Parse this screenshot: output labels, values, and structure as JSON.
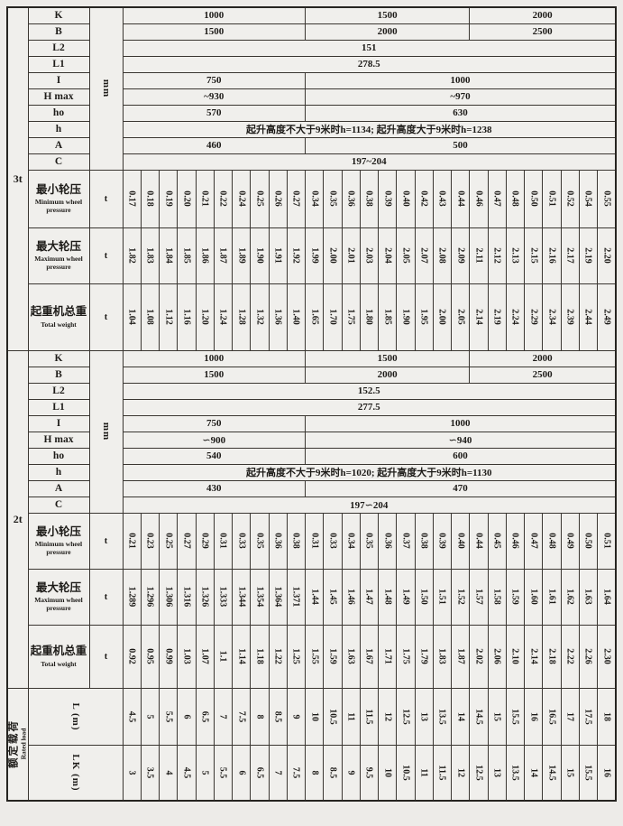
{
  "columns": 27,
  "sections": [
    {
      "capacity": "3t",
      "dim_unit": "mm",
      "dims": [
        {
          "name": "K",
          "cells": [
            {
              "span": 10,
              "text": "1000"
            },
            {
              "span": 9,
              "text": "1500"
            },
            {
              "span": 8,
              "text": "2000"
            }
          ]
        },
        {
          "name": "B",
          "cells": [
            {
              "span": 10,
              "text": "1500"
            },
            {
              "span": 9,
              "text": "2000"
            },
            {
              "span": 8,
              "text": "2500"
            }
          ]
        },
        {
          "name": "L2",
          "cells": [
            {
              "span": 27,
              "text": "151"
            }
          ]
        },
        {
          "name": "L1",
          "cells": [
            {
              "span": 27,
              "text": "278.5"
            }
          ]
        },
        {
          "name": "I",
          "cells": [
            {
              "span": 10,
              "text": "750"
            },
            {
              "span": 17,
              "text": "1000"
            }
          ]
        },
        {
          "name": "H max",
          "cells": [
            {
              "span": 10,
              "text": "~930"
            },
            {
              "span": 17,
              "text": "~970"
            }
          ]
        },
        {
          "name": "ho",
          "cells": [
            {
              "span": 10,
              "text": "570"
            },
            {
              "span": 17,
              "text": "630"
            }
          ]
        },
        {
          "name": "h",
          "cells": [
            {
              "span": 27,
              "text": "起升高度不大于9米时h=1134; 起升高度大于9米时h=1238"
            }
          ]
        },
        {
          "name": "A",
          "cells": [
            {
              "span": 10,
              "text": "460"
            },
            {
              "span": 17,
              "text": "500"
            }
          ]
        },
        {
          "name": "C",
          "cells": [
            {
              "span": 27,
              "text": "197~204"
            }
          ]
        }
      ],
      "rows": [
        {
          "zh": "最小轮压",
          "en": "Minimum wheel pressure",
          "unit": "t",
          "values": [
            "0.17",
            "0.18",
            "0.19",
            "0.20",
            "0.21",
            "0.22",
            "0.24",
            "0.25",
            "0.26",
            "0.27",
            "0.34",
            "0.35",
            "0.36",
            "0.38",
            "0.39",
            "0.40",
            "0.42",
            "0.43",
            "0.44",
            "0.46",
            "0.47",
            "0.48",
            "0.50",
            "0.51",
            "0.52",
            "0.54",
            "0.55"
          ]
        },
        {
          "zh": "最大轮压",
          "en": "Maximum wheel pressure",
          "unit": "t",
          "values": [
            "1.82",
            "1.83",
            "1.84",
            "1.85",
            "1.86",
            "1.87",
            "1.89",
            "1.90",
            "1.91",
            "1.92",
            "1.99",
            "2.00",
            "2.01",
            "2.03",
            "2.04",
            "2.05",
            "2.07",
            "2.08",
            "2.09",
            "2.11",
            "2.12",
            "2.13",
            "2.15",
            "2.16",
            "2.17",
            "2.19",
            "2.20"
          ]
        },
        {
          "zh": "起重机总重",
          "en": "Total weight",
          "unit": "t",
          "values": [
            "1.04",
            "1.08",
            "1.12",
            "1.16",
            "1.20",
            "1.24",
            "1.28",
            "1.32",
            "1.36",
            "1.40",
            "1.65",
            "1.70",
            "1.75",
            "1.80",
            "1.85",
            "1.90",
            "1.95",
            "2.00",
            "2.05",
            "2.14",
            "2.19",
            "2.24",
            "2.29",
            "2.34",
            "2.39",
            "2.44",
            "2.49"
          ]
        }
      ]
    },
    {
      "capacity": "2t",
      "dim_unit": "mm",
      "dims": [
        {
          "name": "K",
          "cells": [
            {
              "span": 10,
              "text": "1000"
            },
            {
              "span": 9,
              "text": "1500"
            },
            {
              "span": 8,
              "text": "2000"
            }
          ]
        },
        {
          "name": "B",
          "cells": [
            {
              "span": 10,
              "text": "1500"
            },
            {
              "span": 9,
              "text": "2000"
            },
            {
              "span": 8,
              "text": "2500"
            }
          ]
        },
        {
          "name": "L2",
          "cells": [
            {
              "span": 27,
              "text": "152.5"
            }
          ]
        },
        {
          "name": "L1",
          "cells": [
            {
              "span": 27,
              "text": "277.5"
            }
          ]
        },
        {
          "name": "I",
          "cells": [
            {
              "span": 10,
              "text": "750"
            },
            {
              "span": 17,
              "text": "1000"
            }
          ]
        },
        {
          "name": "H max",
          "cells": [
            {
              "span": 10,
              "text": "∽900"
            },
            {
              "span": 17,
              "text": "∽940"
            }
          ]
        },
        {
          "name": "ho",
          "cells": [
            {
              "span": 10,
              "text": "540"
            },
            {
              "span": 17,
              "text": "600"
            }
          ]
        },
        {
          "name": "h",
          "cells": [
            {
              "span": 27,
              "text": "起升高度不大于9米时h=1020; 起升高度大于9米时h=1130"
            }
          ]
        },
        {
          "name": "A",
          "cells": [
            {
              "span": 10,
              "text": "430"
            },
            {
              "span": 17,
              "text": "470"
            }
          ]
        },
        {
          "name": "C",
          "cells": [
            {
              "span": 27,
              "text": "197∽204"
            }
          ]
        }
      ],
      "rows": [
        {
          "zh": "最小轮压",
          "en": "Minimum wheel pressure",
          "unit": "t",
          "values": [
            "0.21",
            "0.23",
            "0.25",
            "0.27",
            "0.29",
            "0.31",
            "0.33",
            "0.35",
            "0.36",
            "0.38",
            "0.31",
            "0.33",
            "0.34",
            "0.35",
            "0.36",
            "0.37",
            "0.38",
            "0.39",
            "0.40",
            "0.44",
            "0.45",
            "0.46",
            "0.47",
            "0.48",
            "0.49",
            "0.50",
            "0.51"
          ]
        },
        {
          "zh": "最大轮压",
          "en": "Maximum wheel pressure",
          "unit": "t",
          "values": [
            "1.289",
            "1.296",
            "1.306",
            "1.316",
            "1.326",
            "1.333",
            "1.344",
            "1.354",
            "1.364",
            "1.371",
            "1.44",
            "1.45",
            "1.46",
            "1.47",
            "1.48",
            "1.49",
            "1.50",
            "1.51",
            "1.52",
            "1.57",
            "1.58",
            "1.59",
            "1.60",
            "1.61",
            "1.62",
            "1.63",
            "1.64"
          ]
        },
        {
          "zh": "起重机总重",
          "en": "Total weight",
          "unit": "t",
          "values": [
            "0.92",
            "0.95",
            "0.99",
            "1.03",
            "1.07",
            "1.1",
            "1.14",
            "1.18",
            "1.22",
            "1.25",
            "1.55",
            "1.59",
            "1.63",
            "1.67",
            "1.71",
            "1.75",
            "1.79",
            "1.83",
            "1.87",
            "2.02",
            "2.06",
            "2.10",
            "2.14",
            "2.18",
            "2.22",
            "2.26",
            "2.30"
          ]
        }
      ]
    }
  ],
  "footer": {
    "group_zh": "额定载荷",
    "group_en": "Rated load",
    "rows": [
      {
        "label": "L",
        "unit": "(m)",
        "values": [
          "4.5",
          "5",
          "5.5",
          "6",
          "6.5",
          "7",
          "7.5",
          "8",
          "8.5",
          "9",
          "10",
          "10.5",
          "11",
          "11.5",
          "12",
          "12.5",
          "13",
          "13.5",
          "14",
          "14.5",
          "15",
          "15.5",
          "16",
          "16.5",
          "17",
          "17.5",
          "18"
        ]
      },
      {
        "label": "LK",
        "unit": "(m)",
        "values": [
          "3",
          "3.5",
          "4",
          "4.5",
          "5",
          "5.5",
          "6",
          "6.5",
          "7",
          "7.5",
          "8",
          "8.5",
          "9",
          "9.5",
          "10",
          "10.5",
          "11",
          "11.5",
          "12",
          "12.5",
          "13",
          "13.5",
          "14",
          "14.5",
          "15",
          "15.5",
          "16"
        ]
      }
    ]
  }
}
